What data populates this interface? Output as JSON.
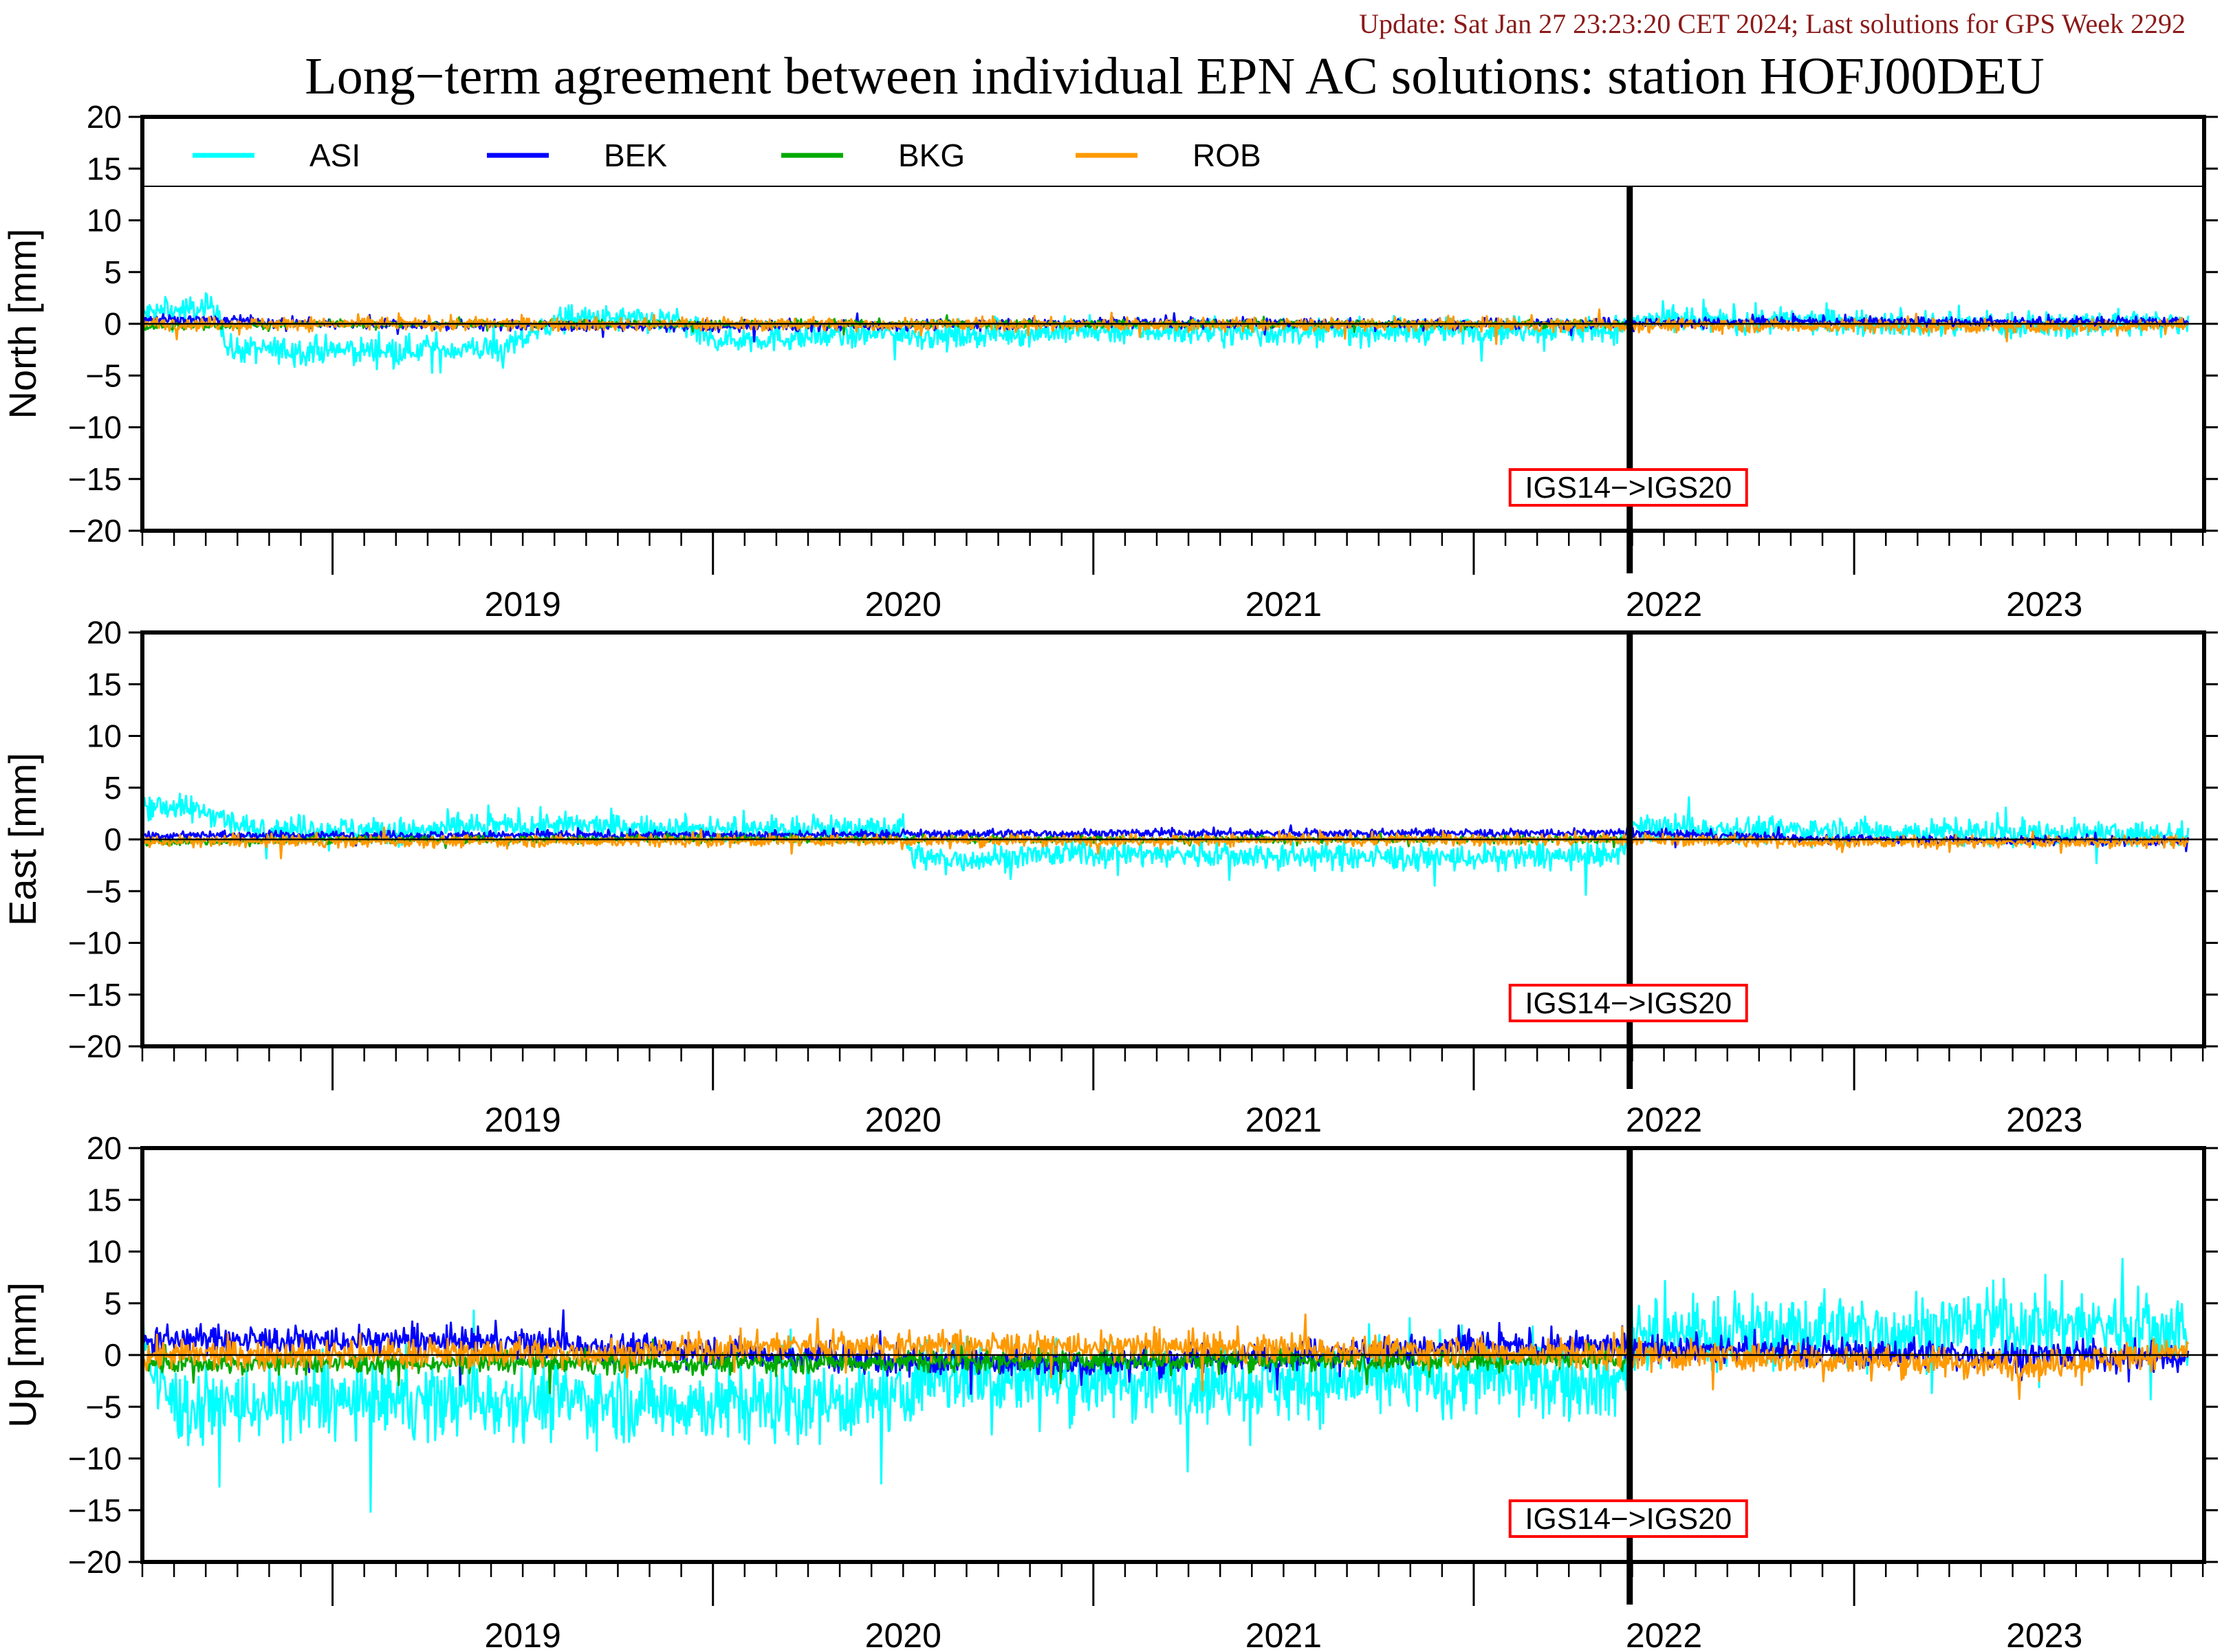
{
  "update_note": "Update: Sat Jan 27 23:23:20 CET 2024; Last solutions for GPS Week 2292",
  "title": "Long−term agreement between individual EPN AC solutions: station HOFJ00DEU",
  "legend": [
    {
      "name": "ASI",
      "color": "#00ffff"
    },
    {
      "name": "BEK",
      "color": "#0000ff"
    },
    {
      "name": "BKG",
      "color": "#00aa00"
    },
    {
      "name": "ROB",
      "color": "#ff9900"
    }
  ],
  "annotation": "IGS14−>IGS20",
  "colors": {
    "title_update": "#8b1a1a",
    "annotation_border": "#ff0000",
    "axis": "#000000"
  },
  "chart_data": [
    {
      "type": "line",
      "ylabel": "North [mm]",
      "ylim": [
        -20,
        20
      ],
      "yticks": [
        20,
        15,
        10,
        5,
        0,
        -5,
        -10,
        -15,
        -20
      ],
      "xlim": [
        2018.5,
        2023.92
      ],
      "year_labels": [
        "2019",
        "2020",
        "2021",
        "2022",
        "2023"
      ],
      "frame_change": 2022.41,
      "legend_placement": "top-inside",
      "series": [
        {
          "name": "ASI",
          "color": "#00ffff",
          "amp": 0.9,
          "x": [
            2018.5,
            2018.7,
            2018.72,
            2019.0,
            2019.45,
            2019.6,
            2019.9,
            2020.0,
            2020.3,
            2020.5,
            2020.55,
            2020.7,
            2021.0,
            2021.5,
            2022.0,
            2022.38,
            2022.42,
            2023.0,
            2023.5,
            2023.88
          ],
          "y": [
            1.0,
            1.6,
            -2.5,
            -2.6,
            -2.4,
            0.5,
            0.3,
            -1.6,
            -1.2,
            -0.8,
            -1.2,
            -1.0,
            -0.6,
            -0.8,
            -0.6,
            -0.5,
            0.3,
            0.2,
            -0.2,
            0.2
          ]
        },
        {
          "name": "BEK",
          "color": "#0000ff",
          "amp": 0.35,
          "x": [
            2018.5,
            2019.0,
            2020.0,
            2021.0,
            2022.0,
            2023.0,
            2023.88
          ],
          "y": [
            0.5,
            0.0,
            -0.3,
            0.1,
            0.0,
            0.2,
            0.2
          ]
        },
        {
          "name": "BKG",
          "color": "#00aa00",
          "amp": 0.25,
          "x": [
            2018.5,
            2019.0,
            2022.4
          ],
          "y": [
            -0.3,
            0.0,
            0.0
          ]
        },
        {
          "name": "ROB",
          "color": "#ff9900",
          "amp": 0.45,
          "x": [
            2018.5,
            2022.41,
            2023.0,
            2023.5,
            2023.88
          ],
          "y": [
            0.0,
            -0.1,
            -0.2,
            -0.3,
            -0.1
          ]
        }
      ]
    },
    {
      "type": "line",
      "ylabel": "East [mm]",
      "ylim": [
        -20,
        20
      ],
      "yticks": [
        20,
        15,
        10,
        5,
        0,
        -5,
        -10,
        -15,
        -20
      ],
      "xlim": [
        2018.5,
        2023.92
      ],
      "year_labels": [
        "2019",
        "2020",
        "2021",
        "2022",
        "2023"
      ],
      "frame_change": 2022.41,
      "series": [
        {
          "name": "ASI",
          "color": "#00ffff",
          "amp": 0.9,
          "x": [
            2018.5,
            2018.7,
            2018.75,
            2019.2,
            2019.5,
            2020.0,
            2020.5,
            2020.52,
            2020.6,
            2021.0,
            2021.5,
            2022.0,
            2022.38,
            2022.42,
            2023.0,
            2023.5,
            2023.88
          ],
          "y": [
            3.5,
            2.5,
            1.2,
            0.8,
            1.4,
            1.0,
            1.0,
            -1.5,
            -2.0,
            -1.3,
            -1.6,
            -1.8,
            -1.6,
            1.2,
            0.8,
            0.6,
            0.4
          ]
        },
        {
          "name": "BEK",
          "color": "#0000ff",
          "amp": 0.3,
          "x": [
            2018.5,
            2020.0,
            2021.0,
            2022.4,
            2023.0,
            2023.88
          ],
          "y": [
            0.4,
            0.4,
            0.6,
            0.6,
            0.0,
            -0.2
          ]
        },
        {
          "name": "BKG",
          "color": "#00aa00",
          "amp": 0.25,
          "x": [
            2018.5,
            2019.0,
            2022.4
          ],
          "y": [
            -0.3,
            0.0,
            0.0
          ]
        },
        {
          "name": "ROB",
          "color": "#ff9900",
          "amp": 0.4,
          "x": [
            2018.5,
            2022.41,
            2023.0,
            2023.88
          ],
          "y": [
            -0.2,
            0.0,
            -0.3,
            -0.2
          ]
        }
      ]
    },
    {
      "type": "line",
      "ylabel": "Up [mm]",
      "ylim": [
        -20,
        20
      ],
      "yticks": [
        20,
        15,
        10,
        5,
        0,
        -5,
        -10,
        -15,
        -20
      ],
      "xlim": [
        2018.5,
        2023.92
      ],
      "year_labels": [
        "2019",
        "2020",
        "2021",
        "2022",
        "2023"
      ],
      "frame_change": 2022.41,
      "series": [
        {
          "name": "ASI",
          "color": "#00ffff",
          "amp": 2.6,
          "x": [
            2018.5,
            2018.55,
            2018.6,
            2019.0,
            2019.5,
            2020.0,
            2020.5,
            2020.55,
            2021.0,
            2021.5,
            2022.0,
            2022.38,
            2022.42,
            2023.0,
            2023.5,
            2023.88
          ],
          "y": [
            1.5,
            -3.5,
            -5.0,
            -4.5,
            -4.2,
            -4.8,
            -4.2,
            -2.0,
            -2.5,
            -2.8,
            -2.2,
            -2.6,
            2.0,
            2.2,
            3.0,
            2.5
          ]
        },
        {
          "name": "BEK",
          "color": "#0000ff",
          "amp": 1.0,
          "x": [
            2018.5,
            2019.5,
            2020.5,
            2021.0,
            2022.0,
            2022.4,
            2023.0,
            2023.88
          ],
          "y": [
            1.5,
            1.2,
            -0.5,
            -0.8,
            0.8,
            0.8,
            0.2,
            -0.3
          ]
        },
        {
          "name": "BKG",
          "color": "#00aa00",
          "amp": 0.7,
          "x": [
            2018.5,
            2020.0,
            2021.0,
            2022.4
          ],
          "y": [
            -0.8,
            -0.8,
            -0.5,
            -0.5
          ]
        },
        {
          "name": "ROB",
          "color": "#ff9900",
          "amp": 1.0,
          "x": [
            2018.5,
            2019.8,
            2020.2,
            2021.0,
            2021.6,
            2022.41,
            2023.0,
            2023.5,
            2023.88
          ],
          "y": [
            0.0,
            0.2,
            1.0,
            0.8,
            0.6,
            0.0,
            -0.5,
            -1.0,
            0.5
          ]
        }
      ]
    }
  ]
}
